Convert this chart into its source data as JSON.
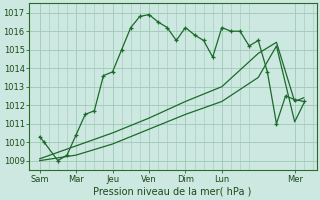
{
  "xlabel": "Pression niveau de la mer( hPa )",
  "bg_color": "#cde8e0",
  "grid_color": "#a0c8b8",
  "line_color": "#1a6b2a",
  "ylim": [
    1008.5,
    1017.5
  ],
  "yticks": [
    1009,
    1010,
    1011,
    1012,
    1013,
    1014,
    1015,
    1016,
    1017
  ],
  "xlim": [
    -0.3,
    7.6
  ],
  "line1_x": [
    0.0,
    0.12,
    0.5,
    0.75,
    1.0,
    1.25,
    1.5,
    1.75,
    2.0,
    2.25,
    2.5,
    2.75,
    3.0,
    3.25,
    3.5,
    3.75,
    4.0,
    4.25,
    4.5,
    4.75,
    5.0,
    5.25,
    5.5,
    5.75,
    6.0,
    6.25,
    6.5,
    6.75,
    7.0,
    7.25
  ],
  "line1_y": [
    1010.3,
    1010.0,
    1009.0,
    1009.3,
    1010.4,
    1011.5,
    1011.7,
    1013.6,
    1013.8,
    1015.0,
    1016.2,
    1016.8,
    1016.9,
    1016.5,
    1016.2,
    1015.5,
    1016.2,
    1015.8,
    1015.5,
    1014.6,
    1016.2,
    1016.0,
    1016.0,
    1015.2,
    1015.5,
    1013.8,
    1011.0,
    1012.5,
    1012.3,
    1012.2
  ],
  "line2_x": [
    0.0,
    1.0,
    2.0,
    3.0,
    4.0,
    5.0,
    6.0,
    6.5,
    7.0,
    7.25
  ],
  "line2_y": [
    1009.1,
    1009.8,
    1010.5,
    1011.3,
    1012.2,
    1013.0,
    1014.8,
    1015.4,
    1012.2,
    1012.4
  ],
  "line3_x": [
    0.0,
    1.0,
    2.0,
    3.0,
    4.0,
    5.0,
    6.0,
    6.5,
    7.0,
    7.25
  ],
  "line3_y": [
    1009.0,
    1009.3,
    1009.9,
    1010.7,
    1011.5,
    1012.2,
    1013.5,
    1015.2,
    1011.1,
    1012.1
  ],
  "xtick_positions": [
    0,
    1,
    2,
    3,
    4,
    5,
    7
  ],
  "xtick_labels": [
    "Sam",
    "Mar",
    "Jeu",
    "Ven",
    "Dim",
    "Lun",
    "Mer"
  ],
  "vline_positions": [
    0,
    1,
    2,
    3,
    4,
    5,
    7
  ]
}
